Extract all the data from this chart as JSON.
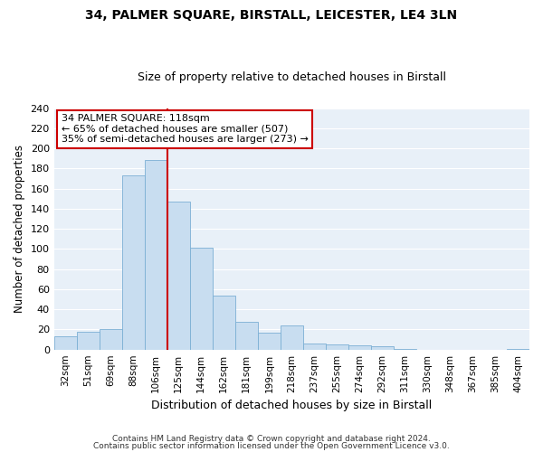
{
  "title": "34, PALMER SQUARE, BIRSTALL, LEICESTER, LE4 3LN",
  "subtitle": "Size of property relative to detached houses in Birstall",
  "xlabel": "Distribution of detached houses by size in Birstall",
  "ylabel": "Number of detached properties",
  "bar_labels": [
    "32sqm",
    "51sqm",
    "69sqm",
    "88sqm",
    "106sqm",
    "125sqm",
    "144sqm",
    "162sqm",
    "181sqm",
    "199sqm",
    "218sqm",
    "237sqm",
    "255sqm",
    "274sqm",
    "292sqm",
    "311sqm",
    "330sqm",
    "348sqm",
    "367sqm",
    "385sqm",
    "404sqm"
  ],
  "bar_values": [
    13,
    18,
    20,
    173,
    188,
    147,
    101,
    54,
    28,
    17,
    24,
    6,
    5,
    4,
    3,
    1,
    0,
    0,
    0,
    0,
    1
  ],
  "bar_color": "#c8ddf0",
  "bar_edge_color": "#7bafd4",
  "vline_color": "#cc0000",
  "vline_pos": 5,
  "ylim": [
    0,
    240
  ],
  "yticks": [
    0,
    20,
    40,
    60,
    80,
    100,
    120,
    140,
    160,
    180,
    200,
    220,
    240
  ],
  "annotation_title": "34 PALMER SQUARE: 118sqm",
  "annotation_line1": "← 65% of detached houses are smaller (507)",
  "annotation_line2": "35% of semi-detached houses are larger (273) →",
  "annotation_box_color": "#ffffff",
  "annotation_box_edge": "#cc0000",
  "footnote1": "Contains HM Land Registry data © Crown copyright and database right 2024.",
  "footnote2": "Contains public sector information licensed under the Open Government Licence v3.0.",
  "fig_bg_color": "#ffffff",
  "plot_bg_color": "#e8f0f8",
  "grid_color": "#ffffff",
  "title_fontsize": 10,
  "subtitle_fontsize": 9
}
